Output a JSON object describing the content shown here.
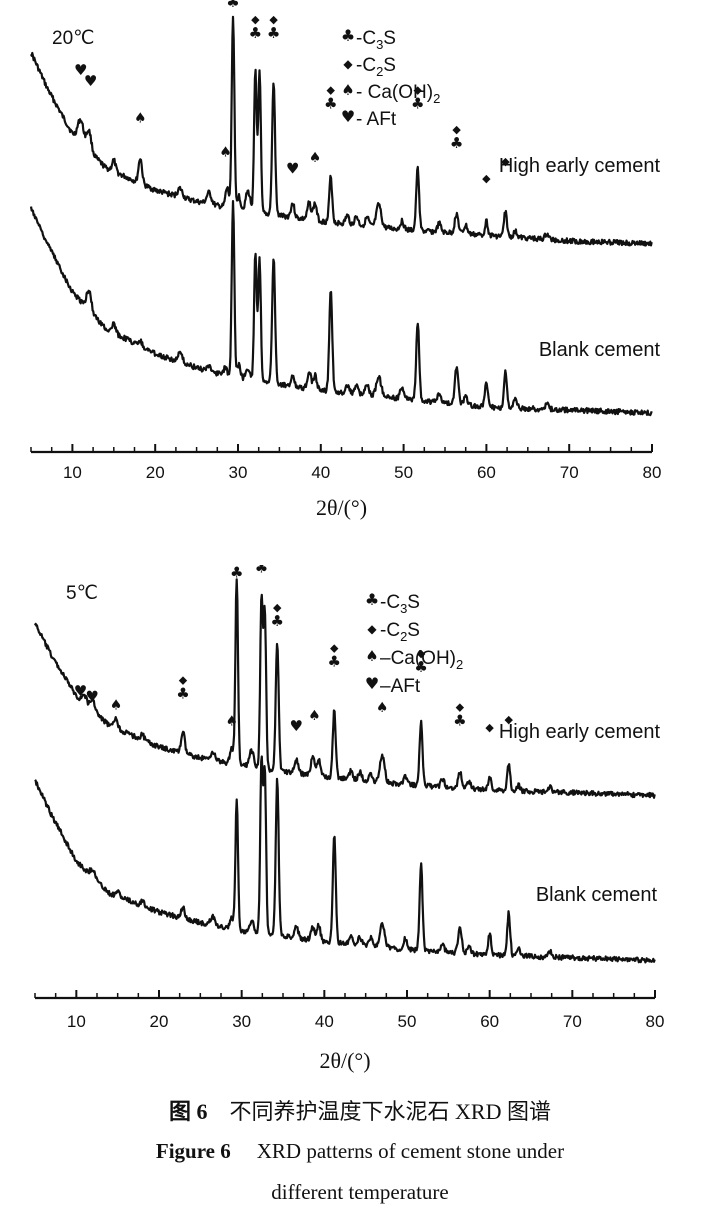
{
  "chart_data": [
    {
      "type": "line",
      "panel_label": "20℃",
      "xlabel": "2θ/(°)",
      "xlim": [
        5,
        80
      ],
      "x_ticks": [
        10,
        20,
        30,
        40,
        50,
        60,
        70,
        80
      ],
      "y_axis": "none",
      "legend": {
        "placement": "top-center",
        "entries": [
          {
            "marker": "club",
            "text": "-C",
            "sub": "3",
            "after": "S"
          },
          {
            "marker": "diamond",
            "text": "-C",
            "sub": "2",
            "after": "S"
          },
          {
            "marker": "spade",
            "text": "- Ca(OH)",
            "sub": "2",
            "after": ""
          },
          {
            "marker": "heart",
            "text": "- AFt",
            "sub": "",
            "after": ""
          }
        ]
      },
      "series": [
        {
          "name": "High early cement",
          "baseline": [
            [
              5,
              0.15
            ],
            [
              7,
              0.28
            ],
            [
              10,
              0.44
            ],
            [
              14,
              0.56
            ],
            [
              20,
              0.64
            ],
            [
              25,
              0.68
            ],
            [
              30,
              0.71
            ],
            [
              40,
              0.75
            ],
            [
              50,
              0.78
            ],
            [
              60,
              0.8
            ],
            [
              70,
              0.82
            ],
            [
              80,
              0.83
            ]
          ],
          "peaks": [
            [
              11,
              0.08,
              0.5
            ],
            [
              12,
              0.07,
              0.4
            ],
            [
              15,
              0.04,
              0.3
            ],
            [
              18.2,
              0.09,
              0.3
            ],
            [
              23,
              0.03,
              0.4
            ],
            [
              26.5,
              0.04,
              0.4
            ],
            [
              28.7,
              0.07,
              0.3
            ],
            [
              29.4,
              0.69,
              0.22
            ],
            [
              30.1,
              0.05,
              0.3
            ],
            [
              31.2,
              0.07,
              0.4
            ],
            [
              32.1,
              0.5,
              0.22
            ],
            [
              32.6,
              0.5,
              0.22
            ],
            [
              34.3,
              0.47,
              0.25
            ],
            [
              36.6,
              0.05,
              0.3
            ],
            [
              38.6,
              0.06,
              0.3
            ],
            [
              39.3,
              0.06,
              0.3
            ],
            [
              41.2,
              0.16,
              0.25
            ],
            [
              43.2,
              0.03,
              0.3
            ],
            [
              44.3,
              0.03,
              0.3
            ],
            [
              45.6,
              0.03,
              0.3
            ],
            [
              47,
              0.08,
              0.4
            ],
            [
              49.8,
              0.03,
              0.3
            ],
            [
              51.7,
              0.22,
              0.25
            ],
            [
              54.3,
              0.03,
              0.3
            ],
            [
              56.4,
              0.07,
              0.3
            ],
            [
              57.5,
              0.03,
              0.3
            ],
            [
              60,
              0.05,
              0.25
            ],
            [
              62.3,
              0.09,
              0.25
            ],
            [
              63.5,
              0.02,
              0.3
            ],
            [
              67.3,
              0.02,
              0.3
            ]
          ]
        },
        {
          "name": "Blank cement",
          "baseline": [
            [
              5,
              0.15
            ],
            [
              7,
              0.28
            ],
            [
              10,
              0.45
            ],
            [
              14,
              0.58
            ],
            [
              20,
              0.67
            ],
            [
              25,
              0.72
            ],
            [
              30,
              0.76
            ],
            [
              40,
              0.8
            ],
            [
              50,
              0.83
            ],
            [
              60,
              0.86
            ],
            [
              70,
              0.87
            ],
            [
              80,
              0.88
            ]
          ],
          "peaks": [
            [
              12,
              0.07,
              0.4
            ],
            [
              15,
              0.03,
              0.3
            ],
            [
              18.2,
              0.02,
              0.3
            ],
            [
              23,
              0.03,
              0.4
            ],
            [
              26.5,
              0.02,
              0.4
            ],
            [
              28.5,
              0.03,
              0.3
            ],
            [
              29.4,
              0.63,
              0.22
            ],
            [
              30.1,
              0.05,
              0.3
            ],
            [
              31.2,
              0.04,
              0.4
            ],
            [
              32.1,
              0.46,
              0.22
            ],
            [
              32.6,
              0.44,
              0.22
            ],
            [
              34.3,
              0.45,
              0.25
            ],
            [
              36.6,
              0.04,
              0.3
            ],
            [
              38.6,
              0.06,
              0.3
            ],
            [
              39.3,
              0.05,
              0.3
            ],
            [
              41.2,
              0.36,
              0.25
            ],
            [
              43.2,
              0.03,
              0.3
            ],
            [
              44.3,
              0.03,
              0.3
            ],
            [
              45.6,
              0.04,
              0.3
            ],
            [
              47,
              0.07,
              0.4
            ],
            [
              49.8,
              0.04,
              0.3
            ],
            [
              51.7,
              0.28,
              0.25
            ],
            [
              54.3,
              0.03,
              0.3
            ],
            [
              56.4,
              0.13,
              0.3
            ],
            [
              57.5,
              0.03,
              0.3
            ],
            [
              60,
              0.09,
              0.25
            ],
            [
              62.3,
              0.13,
              0.25
            ],
            [
              63.5,
              0.03,
              0.3
            ],
            [
              67.3,
              0.02,
              0.3
            ]
          ]
        }
      ],
      "phase_markers": [
        {
          "x": 11,
          "y": 0.23,
          "symbols": [
            "heart"
          ]
        },
        {
          "x": 12.2,
          "y": 0.27,
          "symbols": [
            "heart"
          ]
        },
        {
          "x": 18.2,
          "y": 0.4,
          "symbols": [
            "spade"
          ]
        },
        {
          "x": 28.5,
          "y": 0.52,
          "symbols": [
            "spade"
          ]
        },
        {
          "x": 29.4,
          "y": -0.01,
          "symbols": [
            "diamond",
            "club"
          ]
        },
        {
          "x": 32.1,
          "y": 0.1,
          "symbols": [
            "diamond",
            "club"
          ]
        },
        {
          "x": 34.3,
          "y": 0.1,
          "symbols": [
            "diamond",
            "club"
          ]
        },
        {
          "x": 36.6,
          "y": 0.58,
          "symbols": [
            "heart"
          ]
        },
        {
          "x": 39.3,
          "y": 0.54,
          "symbols": [
            "spade"
          ]
        },
        {
          "x": 41.2,
          "y": 0.35,
          "symbols": [
            "diamond",
            "club"
          ]
        },
        {
          "x": 51.7,
          "y": 0.35,
          "symbols": [
            "diamond",
            "club"
          ]
        },
        {
          "x": 56.4,
          "y": 0.49,
          "symbols": [
            "diamond",
            "club"
          ]
        },
        {
          "x": 60,
          "y": 0.61,
          "symbols": [
            "diamond"
          ]
        },
        {
          "x": 62.3,
          "y": 0.55,
          "symbols": [
            "diamond"
          ]
        }
      ]
    },
    {
      "type": "line",
      "panel_label": "5℃",
      "xlabel": "2θ/(°)",
      "xlim": [
        5,
        80
      ],
      "x_ticks": [
        10,
        20,
        30,
        40,
        50,
        60,
        70,
        80
      ],
      "y_axis": "none",
      "legend": {
        "placement": "top-center",
        "entries": [
          {
            "marker": "club",
            "text": "-C",
            "sub": "3",
            "after": "S"
          },
          {
            "marker": "diamond",
            "text": "-C",
            "sub": "2",
            "after": "S"
          },
          {
            "marker": "spade",
            "text": "–Ca(OH)",
            "sub": "2",
            "after": ""
          },
          {
            "marker": "heart",
            "text": "–AFt",
            "sub": "",
            "after": ""
          }
        ]
      },
      "series": [
        {
          "name": "High early cement",
          "baseline": [
            [
              5,
              0.18
            ],
            [
              7,
              0.3
            ],
            [
              10,
              0.45
            ],
            [
              14,
              0.56
            ],
            [
              20,
              0.64
            ],
            [
              25,
              0.68
            ],
            [
              30,
              0.71
            ],
            [
              40,
              0.75
            ],
            [
              50,
              0.78
            ],
            [
              60,
              0.8
            ],
            [
              70,
              0.81
            ],
            [
              80,
              0.82
            ]
          ],
          "peaks": [
            [
              11,
              0.03,
              0.4
            ],
            [
              12,
              0.04,
              0.4
            ],
            [
              14.8,
              0.04,
              0.3
            ],
            [
              18,
              0.02,
              0.3
            ],
            [
              22.9,
              0.08,
              0.3
            ],
            [
              26.5,
              0.03,
              0.4
            ],
            [
              28.8,
              0.06,
              0.3
            ],
            [
              29.4,
              0.69,
              0.22
            ],
            [
              31.2,
              0.06,
              0.4
            ],
            [
              32.4,
              0.63,
              0.22
            ],
            [
              32.8,
              0.58,
              0.22
            ],
            [
              34.3,
              0.48,
              0.25
            ],
            [
              36.6,
              0.05,
              0.3
            ],
            [
              38.6,
              0.07,
              0.3
            ],
            [
              39.3,
              0.06,
              0.3
            ],
            [
              41.2,
              0.25,
              0.25
            ],
            [
              43.2,
              0.03,
              0.3
            ],
            [
              44.3,
              0.03,
              0.3
            ],
            [
              45.6,
              0.03,
              0.3
            ],
            [
              47,
              0.1,
              0.4
            ],
            [
              49.8,
              0.03,
              0.3
            ],
            [
              51.7,
              0.24,
              0.25
            ],
            [
              54.3,
              0.03,
              0.3
            ],
            [
              56.4,
              0.06,
              0.3
            ],
            [
              57.5,
              0.03,
              0.3
            ],
            [
              60,
              0.05,
              0.25
            ],
            [
              62.3,
              0.1,
              0.25
            ],
            [
              63.5,
              0.02,
              0.3
            ],
            [
              67.3,
              0.02,
              0.3
            ]
          ]
        },
        {
          "name": "Blank cement",
          "baseline": [
            [
              5,
              0.15
            ],
            [
              7,
              0.28
            ],
            [
              10,
              0.45
            ],
            [
              14,
              0.57
            ],
            [
              20,
              0.64
            ],
            [
              25,
              0.68
            ],
            [
              30,
              0.71
            ],
            [
              40,
              0.75
            ],
            [
              50,
              0.78
            ],
            [
              60,
              0.8
            ],
            [
              70,
              0.81
            ],
            [
              80,
              0.82
            ]
          ],
          "peaks": [
            [
              12,
              0.03,
              0.4
            ],
            [
              15,
              0.02,
              0.3
            ],
            [
              18,
              0.02,
              0.3
            ],
            [
              22.9,
              0.04,
              0.3
            ],
            [
              26.5,
              0.03,
              0.4
            ],
            [
              28.8,
              0.04,
              0.3
            ],
            [
              29.4,
              0.48,
              0.22
            ],
            [
              31.2,
              0.04,
              0.4
            ],
            [
              32.4,
              0.64,
              0.22
            ],
            [
              32.8,
              0.6,
              0.22
            ],
            [
              34.3,
              0.58,
              0.25
            ],
            [
              36.6,
              0.05,
              0.3
            ],
            [
              38.6,
              0.05,
              0.3
            ],
            [
              39.3,
              0.06,
              0.3
            ],
            [
              41.2,
              0.4,
              0.25
            ],
            [
              43.2,
              0.03,
              0.3
            ],
            [
              44.3,
              0.03,
              0.3
            ],
            [
              45.6,
              0.03,
              0.3
            ],
            [
              47,
              0.09,
              0.4
            ],
            [
              49.8,
              0.04,
              0.3
            ],
            [
              51.7,
              0.32,
              0.25
            ],
            [
              54.3,
              0.03,
              0.3
            ],
            [
              56.4,
              0.1,
              0.3
            ],
            [
              57.5,
              0.03,
              0.3
            ],
            [
              60,
              0.08,
              0.25
            ],
            [
              62.3,
              0.16,
              0.25
            ],
            [
              63.5,
              0.03,
              0.3
            ],
            [
              67.3,
              0.02,
              0.3
            ]
          ]
        }
      ],
      "phase_markers": [
        {
          "x": 10.5,
          "y": 0.45,
          "symbols": [
            "heart"
          ]
        },
        {
          "x": 11.9,
          "y": 0.47,
          "symbols": [
            "heart"
          ]
        },
        {
          "x": 14.8,
          "y": 0.5,
          "symbols": [
            "spade"
          ]
        },
        {
          "x": 22.9,
          "y": 0.46,
          "symbols": [
            "diamond",
            "club"
          ]
        },
        {
          "x": 28.8,
          "y": 0.56,
          "symbols": [
            "spade"
          ]
        },
        {
          "x": 29.4,
          "y": 0.01,
          "symbols": [
            "diamond",
            "club"
          ]
        },
        {
          "x": 32.4,
          "y": -0.01,
          "symbols": [
            "diamond",
            "club"
          ]
        },
        {
          "x": 34.3,
          "y": 0.19,
          "symbols": [
            "diamond",
            "club"
          ]
        },
        {
          "x": 36.6,
          "y": 0.58,
          "symbols": [
            "heart"
          ]
        },
        {
          "x": 38.8,
          "y": 0.54,
          "symbols": [
            "spade"
          ]
        },
        {
          "x": 41.2,
          "y": 0.34,
          "symbols": [
            "diamond",
            "club"
          ]
        },
        {
          "x": 47,
          "y": 0.51,
          "symbols": [
            "spade"
          ]
        },
        {
          "x": 51.7,
          "y": 0.36,
          "symbols": [
            "diamond",
            "club"
          ]
        },
        {
          "x": 56.4,
          "y": 0.56,
          "symbols": [
            "diamond",
            "club"
          ]
        },
        {
          "x": 60,
          "y": 0.58,
          "symbols": [
            "diamond"
          ]
        },
        {
          "x": 62.3,
          "y": 0.55,
          "symbols": [
            "diamond"
          ]
        }
      ]
    }
  ],
  "caption": {
    "cn_label": "图 6",
    "cn_text": "不同养护温度下水泥石 XRD 图谱",
    "en_label": "Figure 6",
    "en_text_1": "XRD patterns of cement stone under",
    "en_text_2": "different temperature"
  }
}
